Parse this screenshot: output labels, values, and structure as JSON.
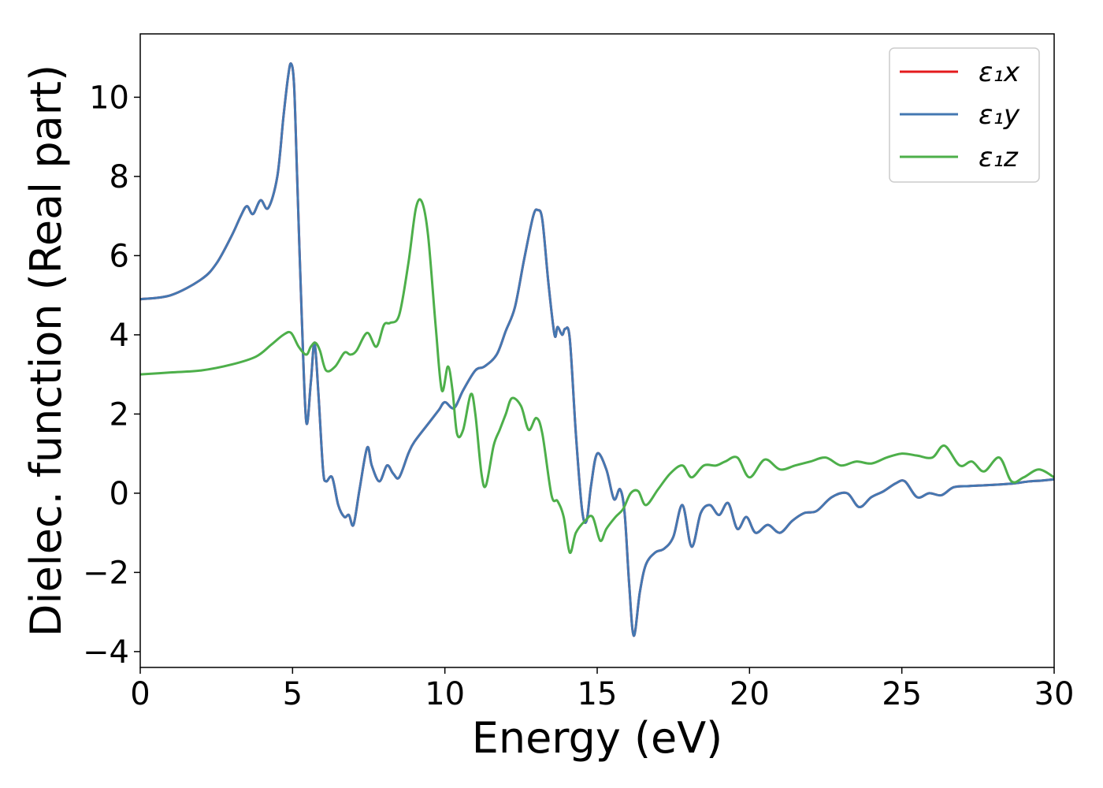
{
  "chart_data": {
    "type": "line",
    "xlabel": "Energy (eV)",
    "ylabel": "Dielec. function (Real part)",
    "xlim": [
      0,
      30
    ],
    "ylim": [
      -4.4,
      11.6
    ],
    "xticks": [
      "0",
      "5",
      "10",
      "15",
      "20",
      "25",
      "30"
    ],
    "yticks": [
      "−4",
      "−2",
      "0",
      "2",
      "4",
      "6",
      "8",
      "10"
    ],
    "grid": false,
    "legend_position": "upper right",
    "series": [
      {
        "name": "ε₁x",
        "color": "#e41a1c",
        "x": [
          0,
          1,
          2,
          2.5,
          3,
          3.3,
          3.5,
          3.7,
          3.95,
          4.2,
          4.5,
          4.7,
          4.85,
          4.95,
          5.05,
          5.15,
          5.3,
          5.45,
          5.6,
          5.72,
          5.85,
          6.0,
          6.1,
          6.3,
          6.5,
          6.7,
          6.85,
          7.0,
          7.2,
          7.45,
          7.6,
          7.85,
          8.1,
          8.3,
          8.5,
          8.8,
          9.0,
          9.5,
          9.8,
          10.0,
          10.3,
          10.6,
          11.0,
          11.3,
          11.7,
          12.0,
          12.3,
          12.6,
          12.9,
          13.05,
          13.2,
          13.4,
          13.6,
          13.7,
          13.85,
          13.95,
          14.1,
          14.3,
          14.5,
          14.65,
          14.8,
          15.0,
          15.3,
          15.55,
          15.75,
          15.9,
          16.05,
          16.2,
          16.4,
          16.6,
          16.9,
          17.2,
          17.5,
          17.8,
          18.1,
          18.4,
          18.7,
          19.0,
          19.3,
          19.6,
          19.9,
          20.2,
          20.6,
          21.0,
          21.4,
          21.8,
          22.2,
          22.7,
          23.2,
          23.6,
          24.0,
          24.4,
          24.8,
          25.1,
          25.5,
          25.9,
          26.3,
          26.7,
          27.2,
          27.7,
          28.2,
          28.7,
          29.2,
          29.6,
          30.0
        ],
        "y": [
          4.9,
          5.0,
          5.4,
          5.8,
          6.5,
          7.0,
          7.25,
          7.05,
          7.4,
          7.2,
          8.0,
          9.5,
          10.5,
          10.85,
          10.3,
          8.0,
          4.5,
          1.8,
          2.8,
          3.8,
          2.5,
          0.6,
          0.3,
          0.4,
          -0.3,
          -0.6,
          -0.55,
          -0.8,
          0.1,
          1.15,
          0.7,
          0.3,
          0.7,
          0.5,
          0.4,
          1.0,
          1.3,
          1.8,
          2.1,
          2.3,
          2.15,
          2.6,
          3.1,
          3.2,
          3.5,
          4.1,
          4.7,
          5.9,
          7.0,
          7.15,
          6.9,
          5.3,
          4.0,
          4.2,
          4.0,
          4.15,
          3.9,
          1.5,
          -0.4,
          -0.7,
          0.2,
          1.0,
          0.6,
          -0.15,
          0.1,
          -0.5,
          -2.3,
          -3.6,
          -2.5,
          -1.8,
          -1.5,
          -1.4,
          -1.1,
          -0.3,
          -1.35,
          -0.5,
          -0.3,
          -0.55,
          -0.25,
          -0.9,
          -0.6,
          -1.0,
          -0.8,
          -1.0,
          -0.7,
          -0.5,
          -0.45,
          -0.1,
          0.0,
          -0.35,
          -0.1,
          0.05,
          0.25,
          0.3,
          -0.1,
          0.0,
          -0.05,
          0.15,
          0.18,
          0.2,
          0.22,
          0.25,
          0.3,
          0.32,
          0.35
        ]
      },
      {
        "name": "ε₁y",
        "color": "#4478b2",
        "x": [
          0,
          1,
          2,
          2.5,
          3,
          3.3,
          3.5,
          3.7,
          3.95,
          4.2,
          4.5,
          4.7,
          4.85,
          4.95,
          5.05,
          5.15,
          5.3,
          5.45,
          5.6,
          5.72,
          5.85,
          6.0,
          6.1,
          6.3,
          6.5,
          6.7,
          6.85,
          7.0,
          7.2,
          7.45,
          7.6,
          7.85,
          8.1,
          8.3,
          8.5,
          8.8,
          9.0,
          9.5,
          9.8,
          10.0,
          10.3,
          10.6,
          11.0,
          11.3,
          11.7,
          12.0,
          12.3,
          12.6,
          12.9,
          13.05,
          13.2,
          13.4,
          13.6,
          13.7,
          13.85,
          13.95,
          14.1,
          14.3,
          14.5,
          14.65,
          14.8,
          15.0,
          15.3,
          15.55,
          15.75,
          15.9,
          16.05,
          16.2,
          16.4,
          16.6,
          16.9,
          17.2,
          17.5,
          17.8,
          18.1,
          18.4,
          18.7,
          19.0,
          19.3,
          19.6,
          19.9,
          20.2,
          20.6,
          21.0,
          21.4,
          21.8,
          22.2,
          22.7,
          23.2,
          23.6,
          24.0,
          24.4,
          24.8,
          25.1,
          25.5,
          25.9,
          26.3,
          26.7,
          27.2,
          27.7,
          28.2,
          28.7,
          29.2,
          29.6,
          30.0
        ],
        "y": [
          4.9,
          5.0,
          5.4,
          5.8,
          6.5,
          7.0,
          7.25,
          7.05,
          7.4,
          7.2,
          8.0,
          9.5,
          10.5,
          10.85,
          10.3,
          8.0,
          4.5,
          1.8,
          2.8,
          3.8,
          2.5,
          0.6,
          0.3,
          0.4,
          -0.3,
          -0.6,
          -0.55,
          -0.8,
          0.1,
          1.15,
          0.7,
          0.3,
          0.7,
          0.5,
          0.4,
          1.0,
          1.3,
          1.8,
          2.1,
          2.3,
          2.15,
          2.6,
          3.1,
          3.2,
          3.5,
          4.1,
          4.7,
          5.9,
          7.0,
          7.15,
          6.9,
          5.3,
          4.0,
          4.2,
          4.0,
          4.15,
          3.9,
          1.5,
          -0.4,
          -0.7,
          0.2,
          1.0,
          0.6,
          -0.15,
          0.1,
          -0.5,
          -2.3,
          -3.6,
          -2.5,
          -1.8,
          -1.5,
          -1.4,
          -1.1,
          -0.3,
          -1.35,
          -0.5,
          -0.3,
          -0.55,
          -0.25,
          -0.9,
          -0.6,
          -1.0,
          -0.8,
          -1.0,
          -0.7,
          -0.5,
          -0.45,
          -0.1,
          0.0,
          -0.35,
          -0.1,
          0.05,
          0.25,
          0.3,
          -0.1,
          0.0,
          -0.05,
          0.15,
          0.18,
          0.2,
          0.22,
          0.25,
          0.3,
          0.32,
          0.35
        ]
      },
      {
        "name": "ε₁z",
        "color": "#4daf4a",
        "x": [
          0,
          1,
          2,
          3,
          3.8,
          4.3,
          4.7,
          4.95,
          5.2,
          5.45,
          5.6,
          5.75,
          5.9,
          6.1,
          6.4,
          6.7,
          6.9,
          7.1,
          7.45,
          7.75,
          8.0,
          8.2,
          8.5,
          8.8,
          9.05,
          9.25,
          9.45,
          9.7,
          9.9,
          10.1,
          10.25,
          10.4,
          10.6,
          10.85,
          11.0,
          11.2,
          11.35,
          11.6,
          11.8,
          12.0,
          12.2,
          12.5,
          12.75,
          13.0,
          13.2,
          13.5,
          13.7,
          13.9,
          14.1,
          14.3,
          14.6,
          14.85,
          15.1,
          15.3,
          15.6,
          15.85,
          16.1,
          16.35,
          16.6,
          17.0,
          17.4,
          17.8,
          18.1,
          18.5,
          18.9,
          19.2,
          19.6,
          20.0,
          20.5,
          21.0,
          21.5,
          22.0,
          22.5,
          23.0,
          23.5,
          24.0,
          24.5,
          25.0,
          25.5,
          26.0,
          26.4,
          26.9,
          27.3,
          27.7,
          28.2,
          28.6,
          29.0,
          29.5,
          30.0
        ],
        "y": [
          3.0,
          3.05,
          3.1,
          3.25,
          3.45,
          3.75,
          4.0,
          4.05,
          3.7,
          3.5,
          3.7,
          3.8,
          3.6,
          3.1,
          3.2,
          3.55,
          3.5,
          3.6,
          4.05,
          3.7,
          4.25,
          4.3,
          4.5,
          5.8,
          7.2,
          7.35,
          6.5,
          4.2,
          2.6,
          3.2,
          2.6,
          1.5,
          1.6,
          2.5,
          2.0,
          0.5,
          0.2,
          1.2,
          1.6,
          2.0,
          2.4,
          2.2,
          1.6,
          1.9,
          1.5,
          -0.05,
          -0.2,
          -0.6,
          -1.5,
          -1.0,
          -0.7,
          -0.6,
          -1.2,
          -0.9,
          -0.6,
          -0.4,
          0.0,
          0.05,
          -0.3,
          0.1,
          0.5,
          0.7,
          0.4,
          0.7,
          0.7,
          0.8,
          0.9,
          0.4,
          0.85,
          0.6,
          0.7,
          0.8,
          0.9,
          0.7,
          0.8,
          0.75,
          0.9,
          1.0,
          0.95,
          0.9,
          1.2,
          0.7,
          0.8,
          0.55,
          0.9,
          0.3,
          0.4,
          0.6,
          0.4
        ]
      }
    ]
  }
}
